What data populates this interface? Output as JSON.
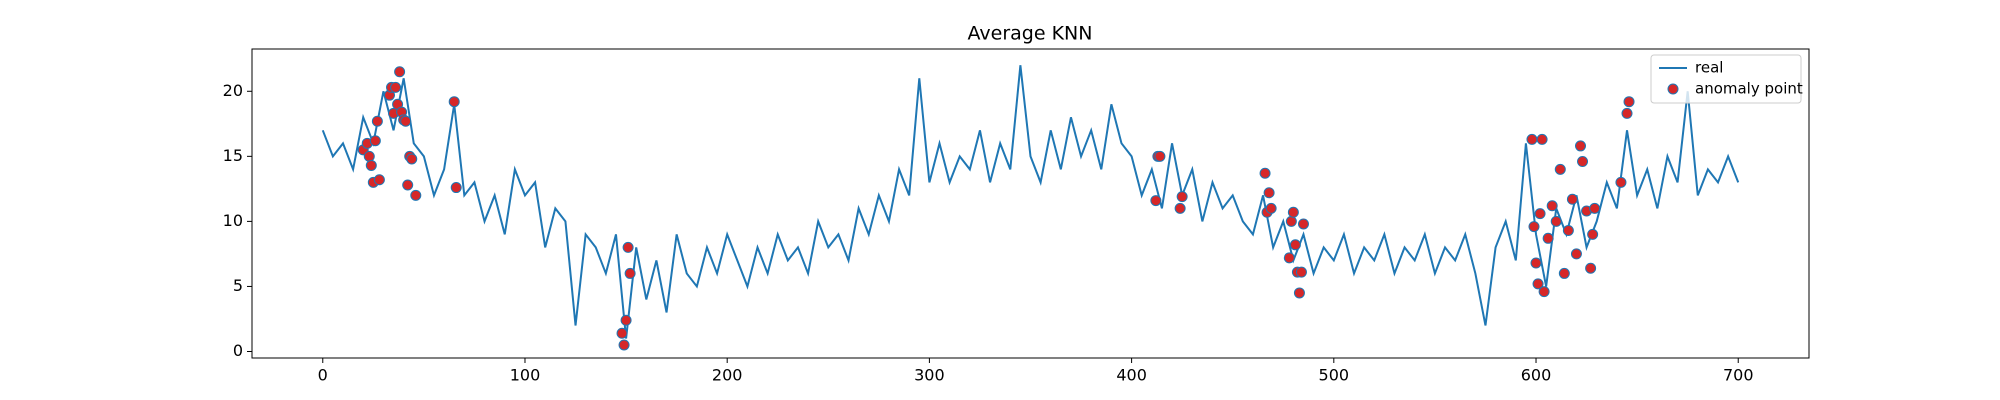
{
  "chart_data": {
    "type": "line",
    "title": "Average KNN",
    "xlim": [
      -35,
      735
    ],
    "xticks": [
      0,
      100,
      200,
      300,
      400,
      500,
      600,
      700
    ],
    "ylim": [
      -0.5,
      23.25
    ],
    "yticks": [
      0,
      5,
      10,
      15,
      20
    ],
    "legend": "upper right",
    "series": [
      {
        "name": "real",
        "type": "line",
        "color": "#1f77b4",
        "x": [
          0,
          5,
          10,
          15,
          20,
          25,
          30,
          35,
          40,
          45,
          50,
          55,
          60,
          65,
          70,
          75,
          80,
          85,
          90,
          95,
          100,
          105,
          110,
          115,
          120,
          125,
          130,
          135,
          140,
          145,
          150,
          155,
          160,
          165,
          170,
          175,
          180,
          185,
          190,
          195,
          200,
          205,
          210,
          215,
          220,
          225,
          230,
          235,
          240,
          245,
          250,
          255,
          260,
          265,
          270,
          275,
          280,
          285,
          290,
          295,
          300,
          305,
          310,
          315,
          320,
          325,
          330,
          335,
          340,
          345,
          350,
          355,
          360,
          365,
          370,
          375,
          380,
          385,
          390,
          395,
          400,
          405,
          410,
          415,
          420,
          425,
          430,
          435,
          440,
          445,
          450,
          455,
          460,
          465,
          470,
          475,
          480,
          485,
          490,
          495,
          500,
          505,
          510,
          515,
          520,
          525,
          530,
          535,
          540,
          545,
          550,
          555,
          560,
          565,
          570,
          575,
          580,
          585,
          590,
          595,
          600,
          605,
          610,
          615,
          620,
          625,
          630,
          635,
          640,
          645,
          650,
          655,
          660,
          665,
          670,
          675,
          680,
          685,
          690,
          695,
          700
        ],
        "values": [
          17,
          15,
          16,
          14,
          18,
          16,
          20,
          17,
          21,
          16,
          15,
          12,
          14,
          19,
          12,
          13,
          10,
          12,
          9,
          14,
          12,
          13,
          8,
          11,
          10,
          2,
          9,
          8,
          6,
          9,
          1,
          8,
          4,
          7,
          3,
          9,
          6,
          5,
          8,
          6,
          9,
          7,
          5,
          8,
          6,
          9,
          7,
          8,
          6,
          10,
          8,
          9,
          7,
          11,
          9,
          12,
          10,
          14,
          12,
          21,
          13,
          16,
          13,
          15,
          14,
          17,
          13,
          16,
          14,
          22,
          15,
          13,
          17,
          14,
          18,
          15,
          17,
          14,
          19,
          16,
          15,
          12,
          14,
          11,
          16,
          12,
          14,
          10,
          13,
          11,
          12,
          10,
          9,
          12,
          8,
          10,
          7,
          9,
          6,
          8,
          7,
          9,
          6,
          8,
          7,
          9,
          6,
          8,
          7,
          9,
          6,
          8,
          7,
          9,
          6,
          2,
          8,
          10,
          7,
          16,
          9,
          5,
          11,
          9,
          12,
          8,
          10,
          13,
          11,
          17,
          12,
          14,
          11,
          15,
          13,
          20,
          12,
          14,
          13,
          15,
          13
        ]
      },
      {
        "name": "anomaly point",
        "type": "scatter",
        "color": "#d62728",
        "edgecolor": "#1f77b4",
        "x": [
          20,
          22,
          23,
          24,
          25,
          26,
          27,
          28,
          33,
          34,
          35,
          36,
          37,
          38,
          39,
          40,
          41,
          42,
          43,
          44,
          46,
          65,
          66,
          148,
          149,
          150,
          151,
          152,
          412,
          413,
          414,
          424,
          425,
          466,
          467,
          468,
          469,
          478,
          479,
          480,
          481,
          482,
          483,
          484,
          485,
          598,
          599,
          600,
          601,
          602,
          603,
          604,
          606,
          608,
          610,
          612,
          614,
          616,
          618,
          620,
          622,
          623,
          625,
          627,
          628,
          629,
          642,
          645,
          646
        ],
        "values": [
          15.5,
          16,
          15,
          14.3,
          13,
          16.2,
          17.7,
          13.2,
          19.7,
          20.3,
          18.3,
          20.3,
          19,
          21.5,
          18.4,
          17.8,
          17.7,
          12.8,
          15,
          14.8,
          12,
          19.2,
          12.6,
          1.4,
          0.5,
          2.4,
          8,
          6,
          11.6,
          15,
          15,
          11,
          11.9,
          13.7,
          10.7,
          12.2,
          11,
          7.2,
          10,
          10.7,
          8.2,
          6.1,
          4.5,
          6.1,
          9.8,
          16.3,
          9.6,
          6.8,
          5.2,
          10.6,
          16.3,
          4.6,
          8.7,
          11.2,
          10,
          14,
          6,
          9.3,
          11.7,
          7.5,
          15.8,
          14.6,
          10.8,
          6.4,
          9,
          11,
          13,
          18.3,
          19.2
        ]
      }
    ]
  }
}
